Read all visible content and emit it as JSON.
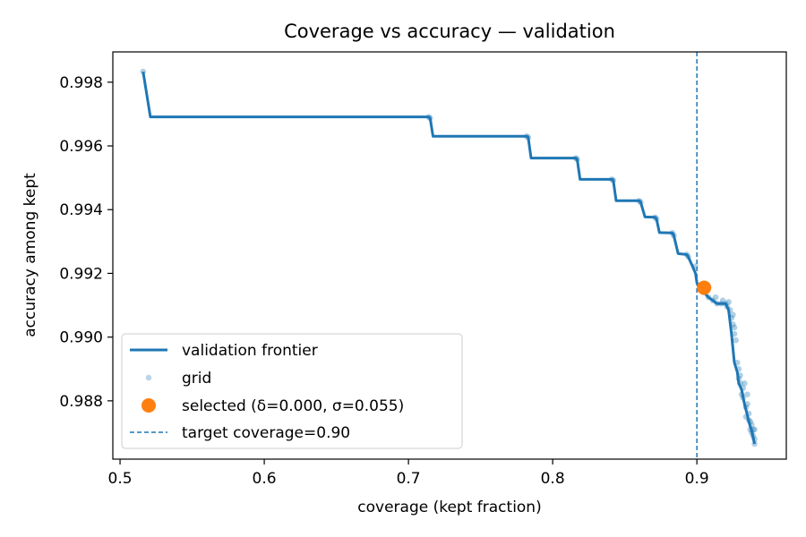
{
  "chart_data": {
    "type": "line",
    "title": "Coverage vs accuracy — validation",
    "xlabel": "coverage (kept fraction)",
    "ylabel": "accuracy among kept",
    "xlim": [
      0.495,
      0.962
    ],
    "ylim": [
      0.98617,
      0.99895
    ],
    "x_ticks": [
      0.5,
      0.6,
      0.7,
      0.8,
      0.9
    ],
    "x_tick_labels": [
      "0.5",
      "0.6",
      "0.7",
      "0.8",
      "0.9"
    ],
    "y_ticks": [
      0.988,
      0.99,
      0.992,
      0.994,
      0.996,
      0.998
    ],
    "y_tick_labels": [
      "0.988",
      "0.990",
      "0.992",
      "0.994",
      "0.996",
      "0.998"
    ],
    "grid": false,
    "legend_position": "lower-left",
    "colors": {
      "frontier": "#1f77b4",
      "grid": "#1f77b4",
      "selected": "#ff7f0e",
      "target": "#1f77b4"
    },
    "series": [
      {
        "name": "validation frontier",
        "kind": "line",
        "x": [
          0.516,
          0.521,
          0.714,
          0.715,
          0.717,
          0.782,
          0.783,
          0.785,
          0.816,
          0.817,
          0.819,
          0.841,
          0.842,
          0.844,
          0.86,
          0.861,
          0.864,
          0.871,
          0.872,
          0.874,
          0.883,
          0.884,
          0.887,
          0.893,
          0.894,
          0.897,
          0.899,
          0.9,
          0.902,
          0.905,
          0.908,
          0.911,
          0.914,
          0.917,
          0.92,
          0.922,
          0.924,
          0.926,
          0.928,
          0.929,
          0.931,
          0.933,
          0.935,
          0.936,
          0.937,
          0.938,
          0.939,
          0.94
        ],
        "y": [
          0.99833,
          0.99691,
          0.99691,
          0.99687,
          0.9963,
          0.9963,
          0.99627,
          0.99562,
          0.99562,
          0.99558,
          0.99495,
          0.99495,
          0.99492,
          0.99428,
          0.99428,
          0.99423,
          0.99377,
          0.99376,
          0.99371,
          0.99328,
          0.99327,
          0.99319,
          0.99262,
          0.99259,
          0.99252,
          0.99222,
          0.992,
          0.9917,
          0.9915,
          0.9914,
          0.99125,
          0.99115,
          0.99105,
          0.99105,
          0.99105,
          0.99085,
          0.9901,
          0.9892,
          0.9889,
          0.98855,
          0.98835,
          0.9879,
          0.98755,
          0.98735,
          0.9872,
          0.98705,
          0.98685,
          0.98665
        ]
      },
      {
        "name": "grid",
        "kind": "scatter",
        "x": [
          0.516,
          0.714,
          0.715,
          0.782,
          0.783,
          0.816,
          0.817,
          0.841,
          0.842,
          0.86,
          0.861,
          0.871,
          0.872,
          0.883,
          0.884,
          0.893,
          0.894,
          0.899,
          0.902,
          0.905,
          0.908,
          0.911,
          0.913,
          0.914,
          0.917,
          0.918,
          0.92,
          0.921,
          0.922,
          0.923,
          0.924,
          0.925,
          0.925,
          0.926,
          0.926,
          0.927,
          0.928,
          0.929,
          0.929,
          0.93,
          0.93,
          0.931,
          0.932,
          0.932,
          0.933,
          0.934,
          0.934,
          0.935,
          0.935,
          0.936,
          0.936,
          0.937,
          0.937,
          0.938,
          0.938,
          0.939,
          0.939,
          0.94,
          0.94,
          0.94
        ],
        "y": [
          0.99833,
          0.99691,
          0.99687,
          0.9963,
          0.99627,
          0.99562,
          0.99558,
          0.99495,
          0.99492,
          0.99428,
          0.99423,
          0.99376,
          0.99371,
          0.99327,
          0.99319,
          0.99259,
          0.99252,
          0.99222,
          0.9915,
          0.9914,
          0.99125,
          0.99115,
          0.99125,
          0.99105,
          0.99105,
          0.99115,
          0.99105,
          0.99095,
          0.9911,
          0.99085,
          0.9906,
          0.9907,
          0.9904,
          0.9901,
          0.9903,
          0.9899,
          0.9892,
          0.989,
          0.9887,
          0.98855,
          0.9888,
          0.9882,
          0.9884,
          0.9881,
          0.98855,
          0.9878,
          0.9875,
          0.9879,
          0.9882,
          0.9874,
          0.9876,
          0.9871,
          0.98735,
          0.987,
          0.98725,
          0.9869,
          0.9871,
          0.98665,
          0.9868,
          0.9871
        ]
      },
      {
        "name": "selected (δ=0.000, σ=0.055)",
        "kind": "point",
        "x": [
          0.905
        ],
        "y": [
          0.99155
        ]
      },
      {
        "name": "target coverage=0.90",
        "kind": "vline",
        "x": [
          0.9
        ]
      }
    ]
  }
}
